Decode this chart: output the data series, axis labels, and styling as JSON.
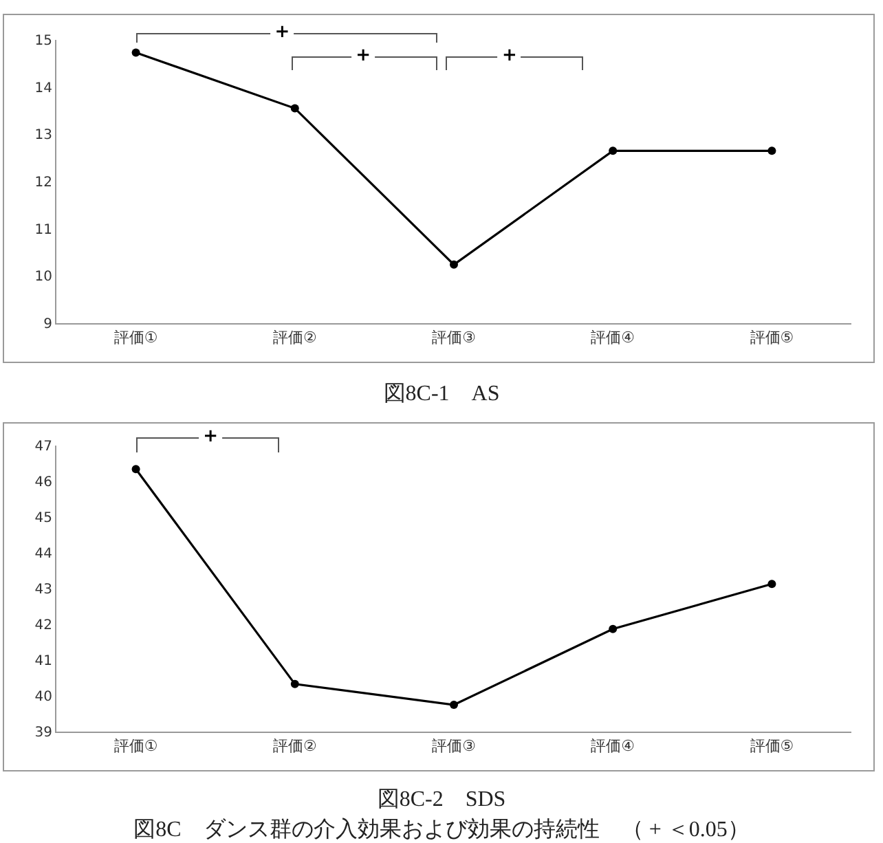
{
  "chart_data": [
    {
      "type": "line",
      "title": "図8C-1　AS",
      "categories": [
        "評価①",
        "評価②",
        "評価③",
        "評価④",
        "評価⑤"
      ],
      "series": [
        {
          "color": "#000000",
          "values": [
            14.73,
            13.55,
            10.24,
            12.65,
            12.65
          ]
        }
      ],
      "ylim": [
        9,
        15
      ],
      "yticks": [
        9,
        10,
        11,
        12,
        13,
        14,
        15
      ],
      "grid": false,
      "marker": "circle",
      "line_style": "solid",
      "annotations": [
        "+",
        "+",
        "+"
      ]
    },
    {
      "type": "line",
      "title": "図8C-2　SDS",
      "categories": [
        "評価①",
        "評価②",
        "評価③",
        "評価④",
        "評価⑤"
      ],
      "series": [
        {
          "color": "#000000",
          "values": [
            46.34,
            40.33,
            39.75,
            41.87,
            43.13
          ]
        }
      ],
      "ylim": [
        39,
        47
      ],
      "yticks": [
        39,
        40,
        41,
        42,
        43,
        44,
        45,
        46,
        47
      ],
      "grid": false,
      "marker": "circle",
      "line_style": "solid",
      "annotations": [
        "+",
        "図8C　ダンス群の介入効果および効果の持続性　（ + ＜0.05）"
      ]
    }
  ]
}
